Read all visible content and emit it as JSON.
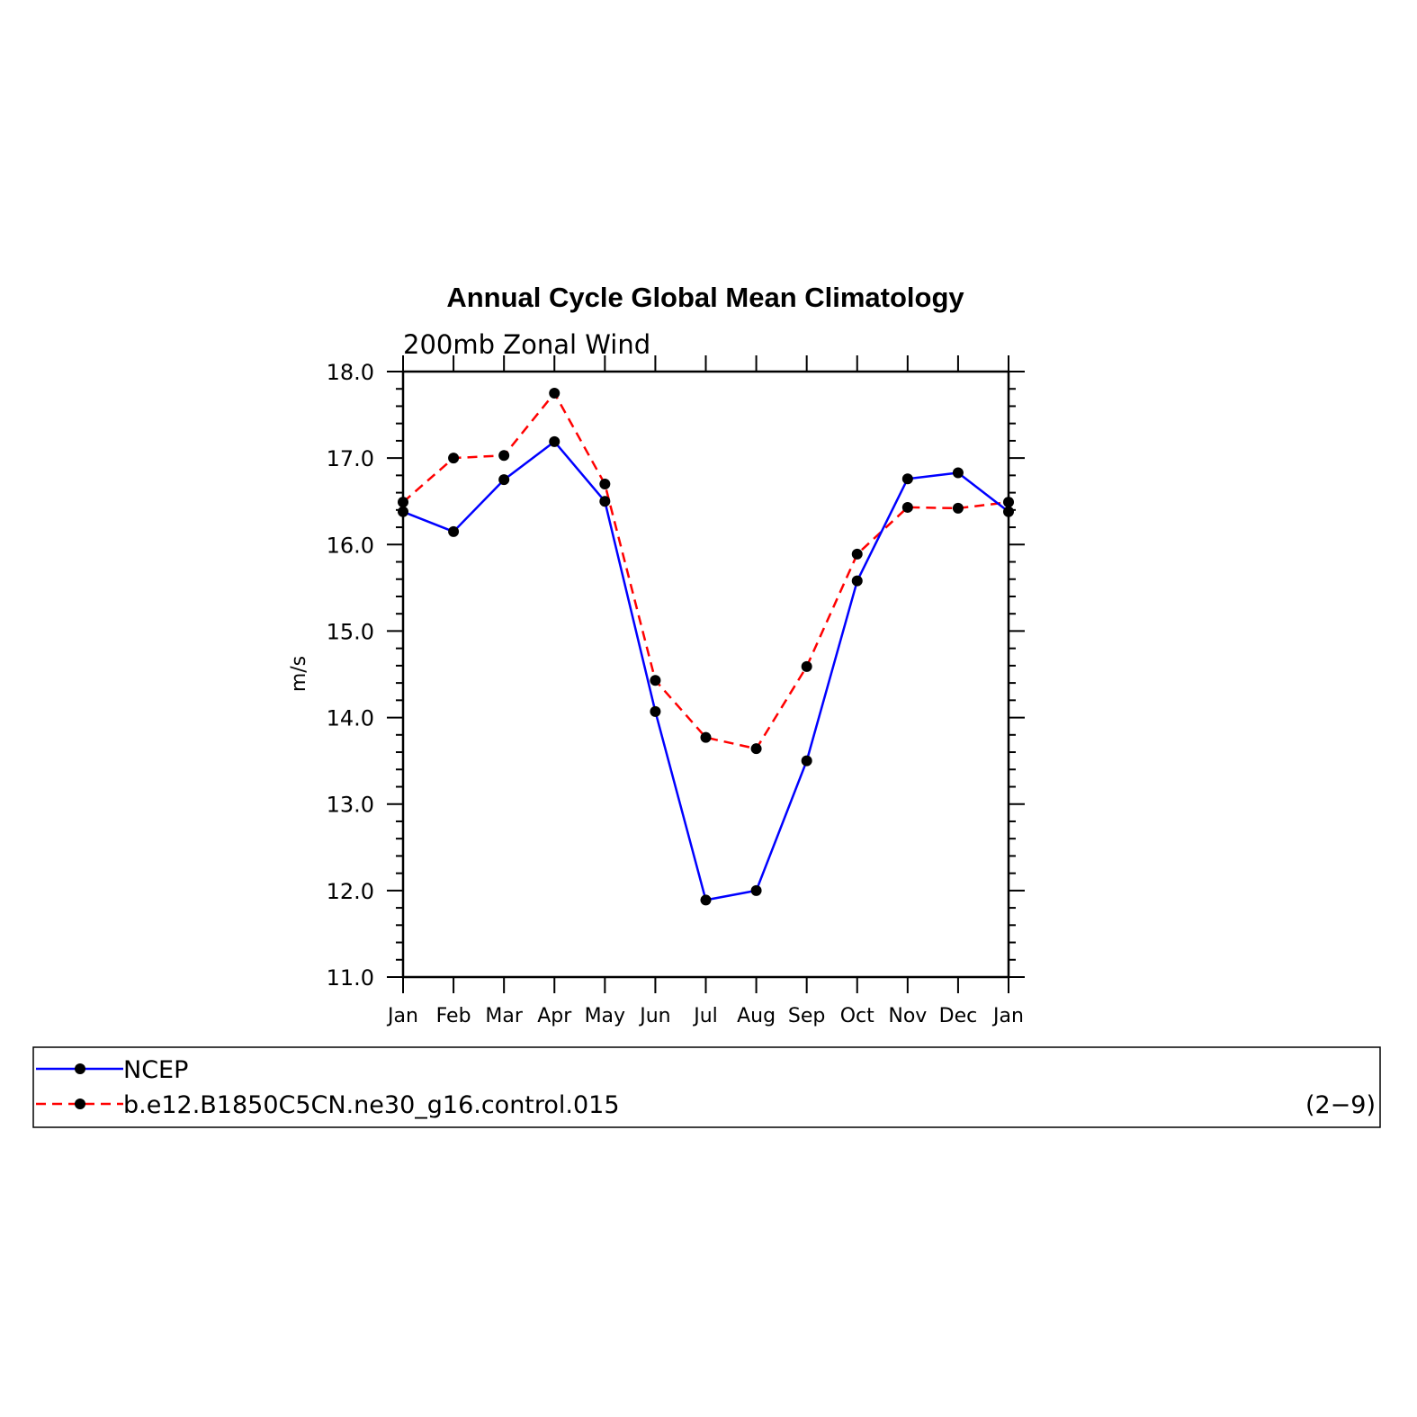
{
  "chart_data": {
    "type": "line",
    "title": "Annual Cycle Global Mean Climatology",
    "subtitle": "200mb Zonal Wind",
    "ylabel": "m/s",
    "xlabel": "",
    "ylim": [
      11.0,
      18.0
    ],
    "yticks": [
      "11.0",
      "12.0",
      "13.0",
      "14.0",
      "15.0",
      "16.0",
      "17.0",
      "18.0"
    ],
    "categories": [
      "Jan",
      "Feb",
      "Mar",
      "Apr",
      "May",
      "Jun",
      "Jul",
      "Aug",
      "Sep",
      "Oct",
      "Nov",
      "Dec",
      "Jan"
    ],
    "series": [
      {
        "name": "NCEP",
        "color": "#0000ff",
        "dash": "solid",
        "values": [
          16.38,
          16.15,
          16.75,
          17.19,
          16.5,
          14.07,
          11.89,
          12.0,
          13.5,
          15.58,
          16.76,
          16.83,
          16.38
        ]
      },
      {
        "name": "b.e12.B1850C5CN.ne30_g16.control.015",
        "color": "#ff0000",
        "dash": "dashed",
        "values": [
          16.49,
          17.0,
          17.03,
          17.75,
          16.7,
          14.43,
          13.77,
          13.64,
          14.59,
          15.89,
          16.43,
          16.42,
          16.49
        ]
      }
    ],
    "grid": false,
    "legend_position": "bottom"
  },
  "legend": {
    "tag": "(2−9)"
  }
}
